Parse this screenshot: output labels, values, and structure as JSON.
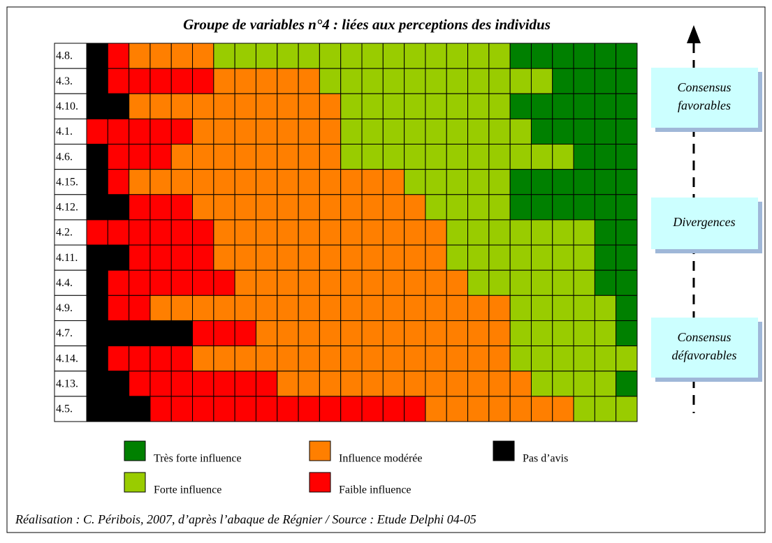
{
  "title": "Groupe de variables n°4 : liées aux perceptions des individus",
  "rows": [
    {
      "label": "4.8.",
      "cells": "KROOOOLLLLLLLLLLLLLLGGGGGG"
    },
    {
      "label": "4.3.",
      "cells": "KRRRRROOOOOLLLLLLLLLLLGGGG"
    },
    {
      "label": "4.10.",
      "cells": "KKOOOOOOOOOOLLLLLLLLGGGGGG"
    },
    {
      "label": "4.1.",
      "cells": "RRRRROOOOOOOLLLLLLLLLGGGGG"
    },
    {
      "label": "4.6.",
      "cells": "KRRROOOOOOOOLLLLLLLLLLLGGG"
    },
    {
      "label": "4.15.",
      "cells": "KROOOOOOOOOOOOOLLLLLGGGGGG"
    },
    {
      "label": "4.12.",
      "cells": "KKRRROOOOOOOOOOOLLLLGGGGGG"
    },
    {
      "label": "4.2.",
      "cells": "RRRRRROOOOOOOOOOOLLLLLLLGG"
    },
    {
      "label": "4.11.",
      "cells": "KKRRRROOOOOOOOOOOLLLLLLLGG"
    },
    {
      "label": "4.4.",
      "cells": "KRRRRRROOOOOOOOOOOLLLLLLGG"
    },
    {
      "label": "4.9.",
      "cells": "KRROOOOOOOOOOOOOOOOOLLLLLG"
    },
    {
      "label": "4.7.",
      "cells": "KKKKKRRROOOOOOOOOOOOLLLLLG"
    },
    {
      "label": "4.14.",
      "cells": "KRRRROOOOOOOOOOOOOOOLLLLLL"
    },
    {
      "label": "4.13.",
      "cells": "KKRRRRRRROOOOOOOOOOOOLLLLG"
    },
    {
      "label": "4.5.",
      "cells": "KKKRRRRRRRRRRRRROOOOOOOLLL"
    }
  ],
  "legend": [
    {
      "code": "G",
      "color": "#008000",
      "label": "Très forte influence"
    },
    {
      "code": "O",
      "color": "#ff7f00",
      "label": "Influence modérée"
    },
    {
      "code": "K",
      "color": "#000000",
      "label": "Pas d’avis"
    },
    {
      "code": "L",
      "color": "#99cc00",
      "label": "Forte influence"
    },
    {
      "code": "R",
      "color": "#ff0000",
      "label": "Faible influence"
    }
  ],
  "side": [
    "Consensus favorables",
    "Divergences",
    "Consensus défavorables"
  ],
  "footer": "Réalisation : C. Péribois, 2007, d’après l’abaque de Régnier / Source : Etude Delphi 04-05"
}
